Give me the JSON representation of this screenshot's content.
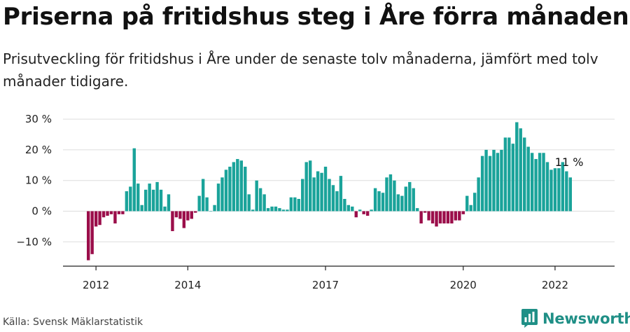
{
  "header": {
    "title": "Priserna på fritidshus steg i Åre förra månaden",
    "subtitle": "Prisutveckling för fritidshus i Åre under de senaste tolv månaderna, jämfört med tolv månader tidigare."
  },
  "footer": {
    "source": "Källa: Svensk Mäklarstatistik",
    "brand": "Newsworthy",
    "brand_icon": "bar-chart-logo-icon"
  },
  "colors": {
    "positive": "#1aa39a",
    "negative": "#9b0e4a",
    "brand": "#1f8f86",
    "grid": "#dddddd"
  },
  "chart_data": {
    "type": "bar",
    "title": "Priserna på fritidshus steg i Åre förra månaden",
    "xlabel": "",
    "ylabel": "",
    "ylim": [
      -18,
      32
    ],
    "grid": true,
    "y_unit": " %",
    "y_ticks": [
      30,
      20,
      10,
      0,
      -10
    ],
    "y_tick_labels": [
      "30 %",
      "20 %",
      "10 %",
      "0 %",
      "−10 %"
    ],
    "x_tick_labels": [
      {
        "label": "2012",
        "at": "2012-01"
      },
      {
        "label": "2014",
        "at": "2014-01"
      },
      {
        "label": "2017",
        "at": "2017-01"
      },
      {
        "label": "2020",
        "at": "2020-01"
      },
      {
        "label": "2022",
        "at": "2022-01"
      }
    ],
    "start_month": "2011-11",
    "values": [
      -16,
      -14,
      -5,
      -4.5,
      -2,
      -1.5,
      -1,
      -4,
      -1,
      -1,
      6.5,
      8,
      20.5,
      9,
      2,
      7,
      9,
      7,
      9.5,
      7,
      1.5,
      5.5,
      -6.5,
      -2,
      -2.5,
      -5.5,
      -3,
      -2.5,
      -0.5,
      5,
      10.5,
      4.5,
      0,
      2,
      9,
      11,
      13.5,
      14.5,
      16,
      17,
      16.5,
      14.5,
      5.5,
      0.5,
      10,
      7.5,
      5.5,
      1,
      1.5,
      1.5,
      1,
      0.5,
      0.5,
      4.5,
      4.5,
      4,
      10.5,
      16,
      16.5,
      11,
      13,
      12.5,
      14.5,
      10.5,
      8.5,
      6.5,
      11.5,
      4,
      2,
      1.5,
      -2,
      0.5,
      -1,
      -1.5,
      0.5,
      7.5,
      6.5,
      6,
      11,
      12,
      10,
      5.5,
      5,
      8,
      9.5,
      7.5,
      1,
      -4,
      -0.5,
      -3,
      -4,
      -5,
      -4,
      -4,
      -4,
      -4,
      -3,
      -3,
      -1,
      5,
      2,
      6,
      11,
      18,
      20,
      18,
      20,
      19,
      20,
      24,
      24,
      22,
      29,
      27,
      24,
      21,
      19,
      17,
      19,
      19,
      16,
      13.5,
      14,
      14,
      16,
      13,
      11
    ],
    "annotations": [
      {
        "text": "11 %",
        "target": "last"
      }
    ]
  }
}
